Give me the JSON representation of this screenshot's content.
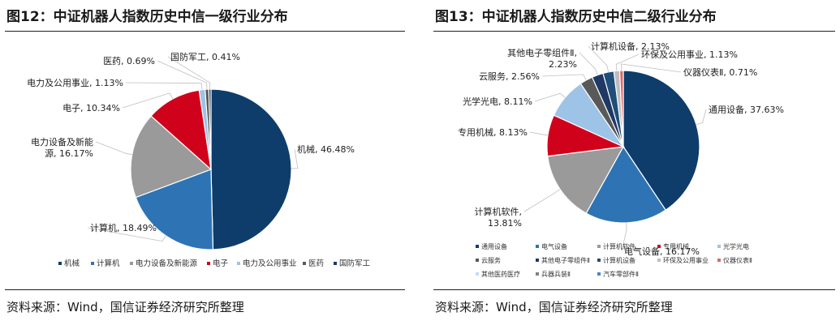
{
  "charts": [
    {
      "title": "图12：中证机器人指数历史中信一级行业分布",
      "source": "资料来源：Wind，国信证券经济研究所整理"
    },
    {
      "title": "图13：中证机器人指数历史中信二级行业分布",
      "source": "资料来源：Wind，国信证券经济研究所整理"
    }
  ],
  "chart_data": [
    {
      "type": "pie",
      "title": "图12：中证机器人指数历史中信一级行业分布",
      "legend_position": "bottom",
      "slices": [
        {
          "name": "机械",
          "value": 46.48,
          "label": "机械, 46.48%",
          "color": "#0e3d6b"
        },
        {
          "name": "计算机",
          "value": 18.49,
          "label": "计算机, 18.49%",
          "color": "#2e74b5"
        },
        {
          "name": "电力设备及新能源",
          "value": 16.17,
          "label": "电力设备及新能源, 16.17%",
          "color": "#9a9a9a"
        },
        {
          "name": "电子",
          "value": 10.34,
          "label": "电子, 10.34%",
          "color": "#d0021b"
        },
        {
          "name": "电力及公用事业",
          "value": 1.13,
          "label": "电力及公用事业, 1.13%",
          "color": "#9dc3e6"
        },
        {
          "name": "医药",
          "value": 0.69,
          "label": "医药, 0.69%",
          "color": "#595959"
        },
        {
          "name": "国防军工",
          "value": 0.41,
          "label": "国防军工, 0.41%",
          "color": "#203864"
        }
      ]
    },
    {
      "type": "pie",
      "title": "图13：中证机器人指数历史中信二级行业分布",
      "legend_position": "bottom",
      "slices": [
        {
          "name": "通用设备",
          "value": 37.63,
          "label": "通用设备, 37.63%",
          "color": "#0e3d6b"
        },
        {
          "name": "电气设备",
          "value": 16.17,
          "label": "电气设备, 16.17%",
          "color": "#2e74b5"
        },
        {
          "name": "计算机软件",
          "value": 13.81,
          "label": "计算机软件, 13.81%",
          "color": "#9a9a9a"
        },
        {
          "name": "专用机械",
          "value": 8.13,
          "label": "专用机械, 8.13%",
          "color": "#d0021b"
        },
        {
          "name": "光学光电",
          "value": 8.11,
          "label": "光学光电, 8.11%",
          "color": "#9dc3e6"
        },
        {
          "name": "云服务",
          "value": 2.56,
          "label": "云服务, 2.56%",
          "color": "#595959"
        },
        {
          "name": "其他电子零组件Ⅱ",
          "value": 2.23,
          "label": "其他电子零组件Ⅱ, 2.23%",
          "color": "#203864"
        },
        {
          "name": "计算机设备",
          "value": 2.13,
          "label": "计算机设备, 2.13%",
          "color": "#1f4e79"
        },
        {
          "name": "环保及公用事业",
          "value": 1.13,
          "label": "环保及公用事业, 1.13%",
          "color": "#bdbdbd"
        },
        {
          "name": "仪器仪表Ⅱ",
          "value": 0.71,
          "label": "仪器仪表Ⅱ, 0.71%",
          "color": "#e06666"
        },
        {
          "name": "其他医药医疗",
          "value": 0.0,
          "color": "#c9daf8"
        },
        {
          "name": "兵器兵装Ⅱ",
          "value": 0.0,
          "color": "#808080"
        },
        {
          "name": "汽车零部件Ⅱ",
          "value": 0.0,
          "color": "#4a86c5"
        }
      ]
    }
  ]
}
